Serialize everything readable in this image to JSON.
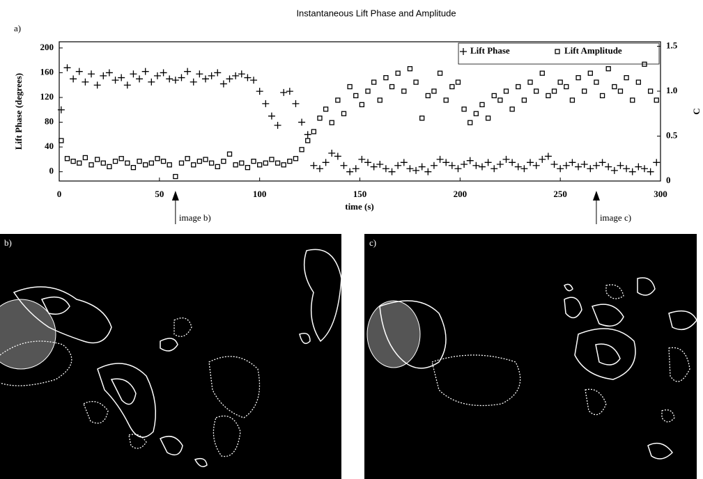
{
  "figure": {
    "label_a": "a)",
    "panels": [
      {
        "label": "b)"
      },
      {
        "label": "c)"
      }
    ]
  },
  "chart_data": {
    "type": "scatter",
    "title": "Instantaneous Lift Phase and Amplitude",
    "xlabel": "time (s)",
    "ylabel": "Lift Phase (degrees)",
    "y2label": "C",
    "x": [
      1,
      4,
      7,
      10,
      13,
      16,
      19,
      22,
      25,
      28,
      31,
      34,
      37,
      40,
      43,
      46,
      49,
      52,
      55,
      58,
      61,
      64,
      67,
      70,
      73,
      76,
      79,
      82,
      85,
      88,
      91,
      94,
      97,
      100,
      103,
      106,
      109,
      112,
      115,
      118,
      121,
      124,
      127,
      130,
      133,
      136,
      139,
      142,
      145,
      148,
      151,
      154,
      157,
      160,
      163,
      166,
      169,
      172,
      175,
      178,
      181,
      184,
      187,
      190,
      193,
      196,
      199,
      202,
      205,
      208,
      211,
      214,
      217,
      220,
      223,
      226,
      229,
      232,
      235,
      238,
      241,
      244,
      247,
      250,
      253,
      256,
      259,
      262,
      265,
      268,
      271,
      274,
      277,
      280,
      283,
      286,
      289,
      292,
      295,
      298
    ],
    "series": [
      {
        "name": "Lift Phase",
        "color": "#000000",
        "marker": "plus",
        "values": [
          100,
          168,
          150,
          162,
          145,
          158,
          140,
          155,
          160,
          148,
          152,
          140,
          158,
          150,
          162,
          145,
          155,
          160,
          150,
          148,
          152,
          162,
          145,
          158,
          150,
          155,
          160,
          142,
          150,
          155,
          158,
          152,
          148,
          130,
          110,
          90,
          75,
          128,
          130,
          110,
          80,
          60,
          10,
          5,
          15,
          30,
          25,
          10,
          0,
          5,
          20,
          15,
          8,
          12,
          5,
          0,
          10,
          15,
          5,
          2,
          8,
          0,
          10,
          20,
          15,
          10,
          5,
          12,
          18,
          10,
          8,
          15,
          5,
          12,
          20,
          15,
          8,
          5,
          15,
          10,
          20,
          25,
          12,
          5,
          10,
          15,
          8,
          12,
          5,
          10,
          15,
          8,
          2,
          10,
          5,
          0,
          8,
          5,
          0,
          15
        ]
      },
      {
        "name": "Lift Amplitude",
        "color": "#000000",
        "marker": "square",
        "axis": "y2",
        "values": [
          0.45,
          0.25,
          0.22,
          0.2,
          0.26,
          0.18,
          0.24,
          0.2,
          0.16,
          0.22,
          0.25,
          0.2,
          0.15,
          0.22,
          0.18,
          0.2,
          0.25,
          0.22,
          0.18,
          0.05,
          0.2,
          0.25,
          0.18,
          0.22,
          0.24,
          0.2,
          0.16,
          0.22,
          0.3,
          0.18,
          0.2,
          0.15,
          0.22,
          0.18,
          0.2,
          0.24,
          0.2,
          0.18,
          0.22,
          0.25,
          0.35,
          0.45,
          0.55,
          0.7,
          0.8,
          0.65,
          0.9,
          0.75,
          1.05,
          0.95,
          0.85,
          1.0,
          1.1,
          0.9,
          1.15,
          1.05,
          1.2,
          1.0,
          1.25,
          1.1,
          0.7,
          0.95,
          1.0,
          1.2,
          0.9,
          1.05,
          1.1,
          0.8,
          0.65,
          0.75,
          0.85,
          0.7,
          0.95,
          0.9,
          1.0,
          0.8,
          1.05,
          0.9,
          1.1,
          1.0,
          1.2,
          0.95,
          1.0,
          1.1,
          1.05,
          0.9,
          1.15,
          1.0,
          1.2,
          1.1,
          0.95,
          1.25,
          1.05,
          1.0,
          1.15,
          0.9,
          1.1,
          1.3,
          1.0,
          0.9
        ]
      }
    ],
    "xlim": [
      0,
      300
    ],
    "xticks": [
      0,
      50,
      100,
      150,
      200,
      250,
      300
    ],
    "ylim": [
      -15,
      210
    ],
    "yticks": [
      0,
      40,
      80,
      120,
      160,
      200
    ],
    "y2lim": [
      0,
      1.55
    ],
    "y2ticks": [
      0,
      0.5,
      {
        "value": 1,
        "label": "1.0"
      },
      1.5
    ],
    "legend": "upper right",
    "annotations": [
      {
        "text": "image b)",
        "x": 58
      },
      {
        "text": "image c)",
        "x": 268
      }
    ]
  }
}
